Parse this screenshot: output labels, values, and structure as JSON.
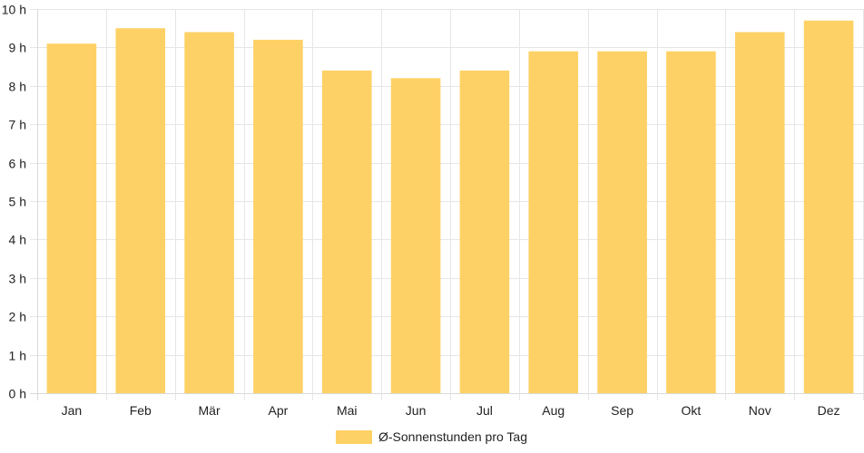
{
  "chart_data": {
    "type": "bar",
    "categories": [
      "Jan",
      "Feb",
      "Mär",
      "Apr",
      "Mai",
      "Jun",
      "Jul",
      "Aug",
      "Sep",
      "Okt",
      "Nov",
      "Dez"
    ],
    "series": [
      {
        "name": "Ø-Sonnenstunden pro Tag",
        "values": [
          9.1,
          9.5,
          9.4,
          9.2,
          8.4,
          8.2,
          8.4,
          8.9,
          8.9,
          8.9,
          9.4,
          9.7
        ],
        "color": "#fdd165"
      }
    ],
    "ylim": [
      0,
      10
    ],
    "y_ticks": [
      "0 h",
      "1 h",
      "2 h",
      "3 h",
      "4 h",
      "5 h",
      "6 h",
      "7 h",
      "8 h",
      "9 h",
      "10 h"
    ],
    "grid": true,
    "legend_position": "bottom-center",
    "title": "",
    "xlabel": "",
    "ylabel": ""
  },
  "colors": {
    "bar": "#fdd165",
    "grid": "#e6e6e6",
    "text": "#222222"
  }
}
